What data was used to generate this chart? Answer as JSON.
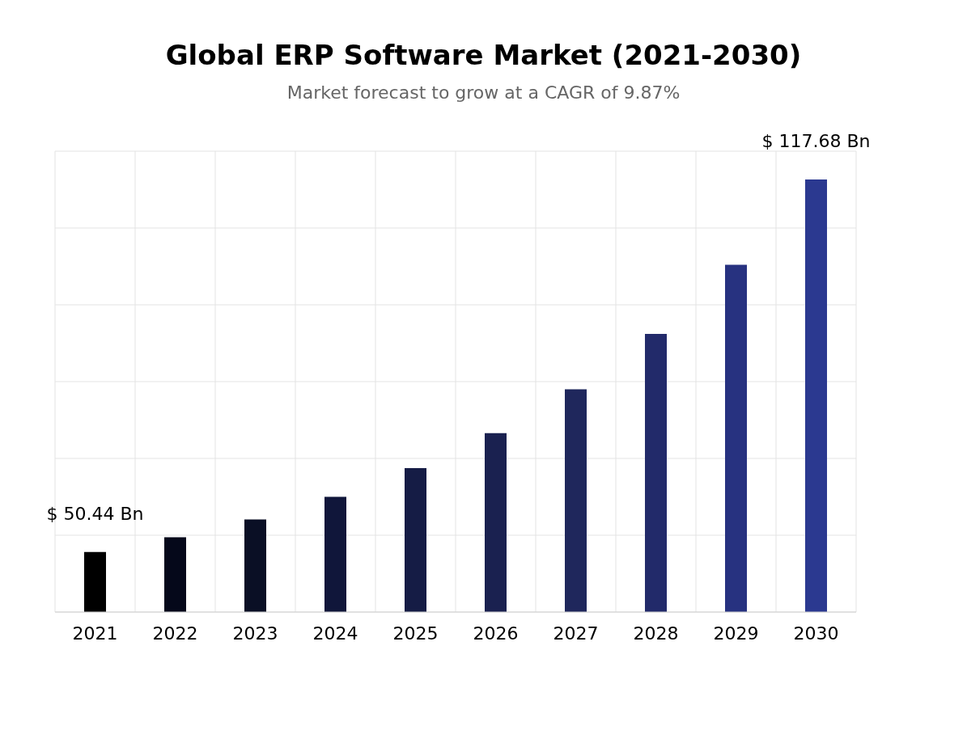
{
  "chart_data": {
    "type": "bar",
    "title": "Global ERP Software Market  (2021-2030)",
    "subtitle": "Market forecast to grow at a CAGR of 9.87%",
    "grid": true,
    "ylim": [
      39.6,
      122.8
    ],
    "categories": [
      "2021",
      "2022",
      "2023",
      "2024",
      "2025",
      "2026",
      "2027",
      "2028",
      "2029",
      "2030"
    ],
    "values": [
      50.44,
      53.1,
      56.3,
      60.4,
      65.6,
      71.9,
      79.8,
      89.8,
      102.3,
      117.68
    ],
    "value_labels": [
      "$ 50.44 Bn",
      null,
      null,
      null,
      null,
      null,
      null,
      null,
      null,
      "$ 117.68 Bn"
    ],
    "colors": [
      "#000000",
      "#05081a",
      "#0a0f25",
      "#10163a",
      "#151c45",
      "#1a2150",
      "#1f275c",
      "#222a6a",
      "#273280",
      "#2b3990"
    ]
  }
}
